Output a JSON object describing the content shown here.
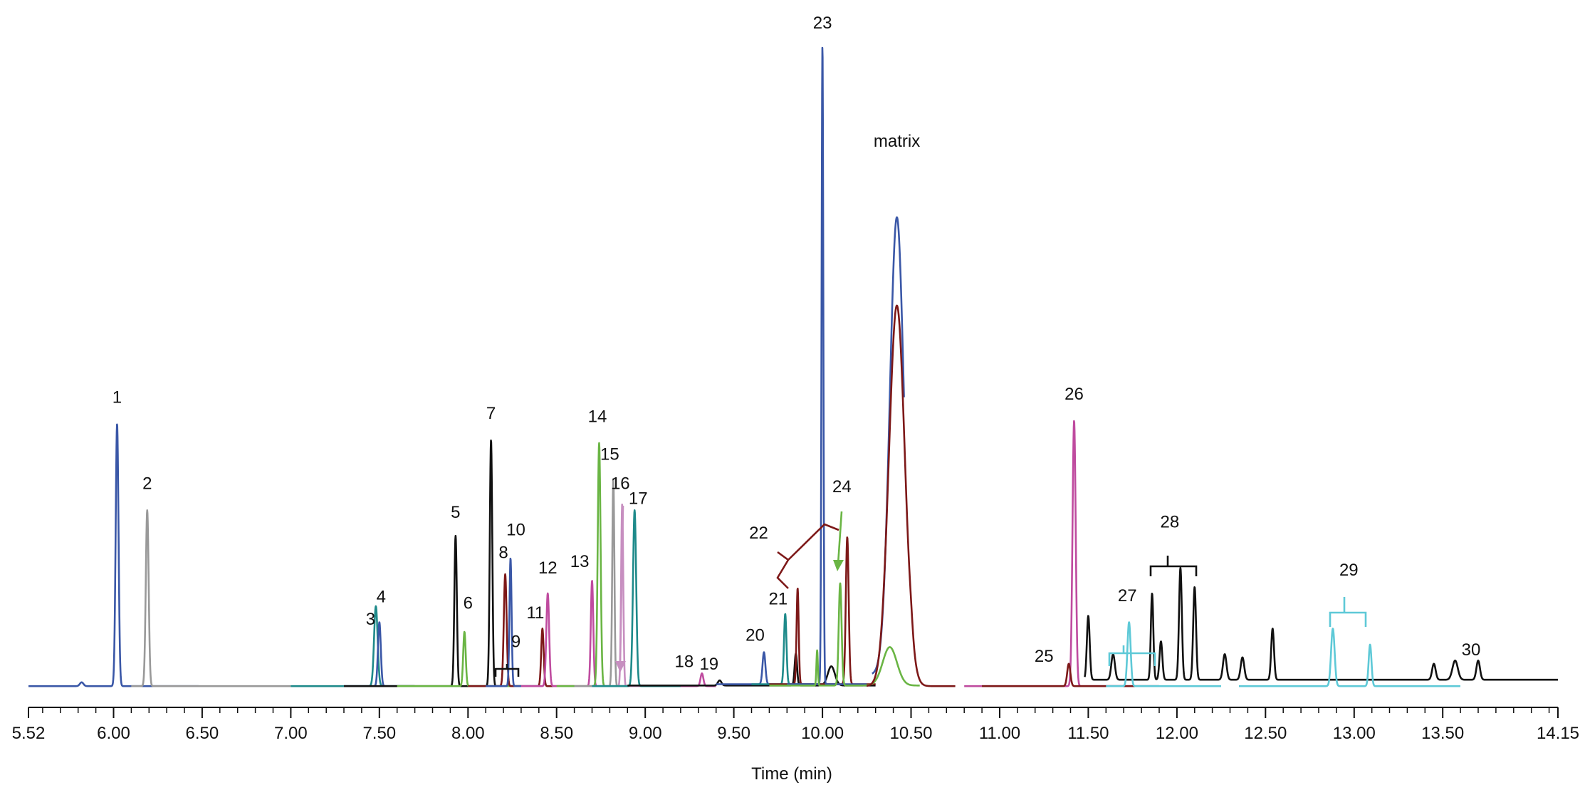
{
  "chart_data": {
    "type": "line",
    "title": "",
    "xlabel": "Time (min)",
    "ylabel": "",
    "xlim": [
      5.52,
      14.15
    ],
    "ylim": [
      0,
      100
    ],
    "grid": false,
    "legend": "none",
    "x_tick_labels": [
      "5.52",
      "6.00",
      "6.50",
      "7.00",
      "7.50",
      "8.00",
      "8.50",
      "9.00",
      "9.50",
      "10.00",
      "10.50",
      "11.00",
      "11.50",
      "12.00",
      "12.50",
      "13.00",
      "13.50",
      "14.15"
    ],
    "x_ticks": [
      5.52,
      6.0,
      6.5,
      7.0,
      7.5,
      8.0,
      8.5,
      9.0,
      9.5,
      10.0,
      10.5,
      11.0,
      11.5,
      12.0,
      12.5,
      13.0,
      13.5,
      14.15
    ],
    "series": [
      {
        "color": "#3a57a7",
        "range": [
          5.52,
          6.48
        ],
        "baseline": 0.2,
        "peaks": [
          [
            5.82,
            0.6,
            0.01
          ],
          [
            6.02,
            41.0,
            0.008
          ]
        ]
      },
      {
        "color": "#999999",
        "range": [
          6.1,
          7.0
        ],
        "baseline": 0.2,
        "peaks": [
          [
            6.19,
            27.5,
            0.008
          ]
        ]
      },
      {
        "color": "#1e8a8a",
        "range": [
          7.0,
          7.7
        ],
        "baseline": 0.2,
        "peaks": [
          [
            7.48,
            12.5,
            0.01
          ]
        ]
      },
      {
        "color": "#3a57a7",
        "range": [
          7.3,
          7.7
        ],
        "baseline": 0.2,
        "peaks": [
          [
            7.5,
            10.0,
            0.008
          ]
        ]
      },
      {
        "color": "#111111",
        "range": [
          7.3,
          8.3
        ],
        "baseline": 0.2,
        "peaks": [
          [
            7.93,
            23.5,
            0.007
          ],
          [
            8.13,
            38.5,
            0.007
          ]
        ]
      },
      {
        "color": "#6ab544",
        "range": [
          7.6,
          8.3
        ],
        "baseline": 0.2,
        "peaks": [
          [
            7.98,
            8.5,
            0.007
          ]
        ]
      },
      {
        "color": "#7d1818",
        "range": [
          8.0,
          8.6
        ],
        "baseline": 0.2,
        "peaks": [
          [
            8.21,
            17.5,
            0.008
          ],
          [
            8.42,
            9.0,
            0.007
          ]
        ]
      },
      {
        "color": "#3a57a7",
        "range": [
          8.1,
          8.4
        ],
        "baseline": 0.2,
        "peaks": [
          [
            8.24,
            20.0,
            0.006
          ]
        ]
      },
      {
        "color": "#bf4b9f",
        "range": [
          8.3,
          9.4
        ],
        "baseline": 0.2,
        "peaks": [
          [
            8.45,
            14.5,
            0.008
          ],
          [
            8.7,
            16.5,
            0.007
          ],
          [
            9.32,
            2.0,
            0.008
          ]
        ]
      },
      {
        "color": "#6ab544",
        "range": [
          8.5,
          8.9
        ],
        "baseline": 0.2,
        "peaks": [
          [
            8.74,
            38.0,
            0.008
          ]
        ]
      },
      {
        "color": "#999999",
        "range": [
          8.6,
          9.1
        ],
        "baseline": 0.2,
        "peaks": [
          [
            8.82,
            32.5,
            0.006
          ]
        ]
      },
      {
        "color": "#c78fc0",
        "range": [
          8.7,
          9.1
        ],
        "baseline": 0.2,
        "peaks": [
          [
            8.87,
            28.5,
            0.006
          ]
        ]
      },
      {
        "color": "#1e8a8a",
        "range": [
          8.7,
          9.2
        ],
        "baseline": 0.2,
        "peaks": [
          [
            8.94,
            27.5,
            0.009
          ]
        ]
      },
      {
        "color": "#111111",
        "range": [
          8.9,
          10.3
        ],
        "baseline": 0.3,
        "peaks": [
          [
            9.42,
            0.8,
            0.01
          ],
          [
            9.85,
            5.0,
            0.007
          ],
          [
            10.05,
            3.0,
            0.02
          ]
        ]
      },
      {
        "color": "#3a57a7",
        "range": [
          9.4,
          10.1
        ],
        "baseline": 0.5,
        "peaks": [
          [
            9.67,
            5.0,
            0.008
          ]
        ]
      },
      {
        "color": "#1e8a8a",
        "range": [
          9.6,
          10.0
        ],
        "baseline": 0.5,
        "peaks": [
          [
            9.79,
            11.0,
            0.007
          ]
        ]
      },
      {
        "color": "#7d1818",
        "range": [
          9.7,
          10.3
        ],
        "baseline": 0.5,
        "peaks": [
          [
            9.86,
            15.0,
            0.006
          ],
          [
            10.14,
            23.0,
            0.008
          ]
        ]
      },
      {
        "color": "#3a57a7",
        "range": [
          9.8,
          10.25
        ],
        "baseline": 0.5,
        "peaks": [
          [
            10.0,
            100.0,
            0.005
          ]
        ]
      },
      {
        "color": "#6ab544",
        "range": [
          9.7,
          10.55
        ],
        "baseline": 0.3,
        "peaks": [
          [
            9.97,
            5.5,
            0.004
          ],
          [
            10.1,
            16.0,
            0.008
          ],
          [
            10.38,
            6.0,
            0.04
          ]
        ]
      },
      {
        "color": "#3a57a7",
        "range": [
          10.28,
          10.46
        ],
        "baseline": 2.0,
        "peaks": [
          [
            10.42,
            71.5,
            0.04
          ]
        ]
      },
      {
        "color": "#7d1818",
        "range": [
          10.25,
          10.75
        ],
        "baseline": 0.2,
        "peaks": [
          [
            10.42,
            59.5,
            0.045
          ],
          [
            10.5,
            1.2,
            0.01
          ]
        ]
      },
      {
        "color": "#bf4b9f",
        "range": [
          10.8,
          11.75
        ],
        "baseline": 0.2,
        "peaks": [
          [
            11.42,
            41.5,
            0.009
          ]
        ]
      },
      {
        "color": "#7d1818",
        "range": [
          10.9,
          11.9
        ],
        "baseline": 0.2,
        "peaks": [
          [
            11.39,
            3.5,
            0.009
          ]
        ]
      },
      {
        "color": "#111111",
        "range": [
          11.48,
          14.15
        ],
        "baseline": 1.2,
        "peaks": [
          [
            11.5,
            10.0,
            0.008
          ],
          [
            11.64,
            4.0,
            0.01
          ],
          [
            11.86,
            13.5,
            0.007
          ],
          [
            11.91,
            6.0,
            0.008
          ],
          [
            12.02,
            17.5,
            0.008
          ],
          [
            12.1,
            14.5,
            0.008
          ],
          [
            12.27,
            4.0,
            0.01
          ],
          [
            12.37,
            3.5,
            0.01
          ],
          [
            12.54,
            8.0,
            0.008
          ],
          [
            13.45,
            2.5,
            0.01
          ],
          [
            13.57,
            3.0,
            0.015
          ],
          [
            13.7,
            3.0,
            0.01
          ]
        ]
      },
      {
        "color": "#5ec9d7",
        "range": [
          11.6,
          12.25
        ],
        "baseline": 0.2,
        "peaks": [
          [
            11.73,
            10.0,
            0.009
          ]
        ]
      },
      {
        "color": "#5ec9d7",
        "range": [
          12.35,
          13.6
        ],
        "baseline": 0.2,
        "peaks": [
          [
            12.88,
            9.0,
            0.01
          ],
          [
            13.09,
            6.5,
            0.008
          ]
        ]
      }
    ],
    "annotations": [
      {
        "text": "1",
        "x": 6.02,
        "y": 44.5
      },
      {
        "text": "2",
        "x": 6.19,
        "y": 31.0
      },
      {
        "text": "3",
        "x": 7.45,
        "y": 9.8
      },
      {
        "text": "4",
        "x": 7.51,
        "y": 13.3
      },
      {
        "text": "5",
        "x": 7.93,
        "y": 26.5
      },
      {
        "text": "6",
        "x": 8.0,
        "y": 12.3
      },
      {
        "text": "7",
        "x": 8.13,
        "y": 42.0
      },
      {
        "text": "8",
        "x": 8.2,
        "y": 20.2
      },
      {
        "text": "9",
        "x": 8.27,
        "y": 6.3
      },
      {
        "text": "10",
        "x": 8.27,
        "y": 23.8
      },
      {
        "text": "11",
        "x": 8.38,
        "y": 10.8
      },
      {
        "text": "12",
        "x": 8.45,
        "y": 17.8
      },
      {
        "text": "13",
        "x": 8.63,
        "y": 18.8
      },
      {
        "text": "14",
        "x": 8.73,
        "y": 41.5
      },
      {
        "text": "15",
        "x": 8.8,
        "y": 35.6
      },
      {
        "text": "16",
        "x": 8.86,
        "y": 31.0
      },
      {
        "text": "17",
        "x": 8.96,
        "y": 28.7
      },
      {
        "text": "18",
        "x": 9.22,
        "y": 3.2
      },
      {
        "text": "19",
        "x": 9.36,
        "y": 2.8
      },
      {
        "text": "20",
        "x": 9.62,
        "y": 7.3
      },
      {
        "text": "21",
        "x": 9.75,
        "y": 13.0
      },
      {
        "text": "22",
        "x": 9.64,
        "y": 23.3
      },
      {
        "text": "23",
        "x": 10.0,
        "y": 103.0
      },
      {
        "text": "24",
        "x": 10.11,
        "y": 30.5
      },
      {
        "text": "25",
        "x": 11.25,
        "y": 4.0
      },
      {
        "text": "26",
        "x": 11.42,
        "y": 45.0
      },
      {
        "text": "27",
        "x": 11.72,
        "y": 13.5
      },
      {
        "text": "28",
        "x": 11.96,
        "y": 25.0
      },
      {
        "text": "29",
        "x": 12.97,
        "y": 17.5
      },
      {
        "text": "30",
        "x": 13.66,
        "y": 5.0
      },
      {
        "text": "matrix",
        "x": 10.42,
        "y": 84.5
      }
    ]
  }
}
